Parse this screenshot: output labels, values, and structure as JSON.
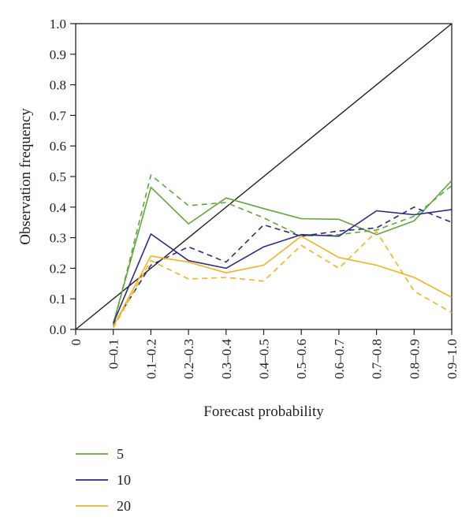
{
  "chart_data": {
    "type": "line",
    "xlabel": "Forecast probability",
    "ylabel": "Observation frequency",
    "x_ticks": [
      "0",
      "0–0.1",
      "0.1–0.2",
      "0.2–0.3",
      "0.3–0.4",
      "0.4–0.5",
      "0.5–0.6",
      "0.6–0.7",
      "0.7–0.8",
      "0.8–0.9",
      "0.9–1.0"
    ],
    "y_ticks": [
      "0.0",
      "0.1",
      "0.2",
      "0.3",
      "0.4",
      "0.5",
      "0.6",
      "0.7",
      "0.8",
      "0.9",
      "1.0"
    ],
    "ylim": [
      0,
      1
    ],
    "categories": [
      "0–0.1",
      "0.1–0.2",
      "0.2–0.3",
      "0.3–0.4",
      "0.4–0.5",
      "0.5–0.6",
      "0.6–0.7",
      "0.7–0.8",
      "0.8–0.9",
      "0.9–1.0"
    ],
    "reference_line": {
      "from": [
        0,
        0
      ],
      "to": [
        1,
        1
      ],
      "color": "#231f20"
    },
    "series": [
      {
        "name": "5",
        "color": "#5fa83a",
        "style": "solid",
        "values": [
          0.02,
          0.465,
          0.345,
          0.43,
          0.395,
          0.362,
          0.36,
          0.31,
          0.355,
          0.487
        ]
      },
      {
        "name": "",
        "color": "#5fa83a",
        "style": "dashed",
        "values": [
          0.01,
          0.505,
          0.405,
          0.415,
          0.365,
          0.305,
          0.31,
          0.325,
          0.37,
          0.47
        ]
      },
      {
        "name": "10",
        "color": "#2e2a85",
        "style": "solid",
        "values": [
          0.02,
          0.312,
          0.225,
          0.2,
          0.27,
          0.31,
          0.305,
          0.388,
          0.375,
          0.392
        ]
      },
      {
        "name": "",
        "color": "#2e2a85",
        "style": "dashed",
        "values": [
          0.015,
          0.21,
          0.27,
          0.22,
          0.342,
          0.305,
          0.322,
          0.332,
          0.4,
          0.35
        ]
      },
      {
        "name": "20",
        "color": "#f5b21c",
        "style": "solid",
        "values": [
          0.01,
          0.24,
          0.22,
          0.185,
          0.21,
          0.305,
          0.235,
          0.21,
          0.17,
          0.105
        ]
      },
      {
        "name": "",
        "color": "#f5b21c",
        "style": "dashed",
        "values": [
          0.005,
          0.225,
          0.165,
          0.17,
          0.158,
          0.275,
          0.2,
          0.32,
          0.125,
          0.055
        ]
      }
    ],
    "legend": {
      "position": "bottom-left",
      "items": [
        {
          "label": "5",
          "color": "#5fa83a"
        },
        {
          "label": "10",
          "color": "#2e2a85"
        },
        {
          "label": "20",
          "color": "#f5b21c"
        }
      ]
    },
    "grid": false
  }
}
